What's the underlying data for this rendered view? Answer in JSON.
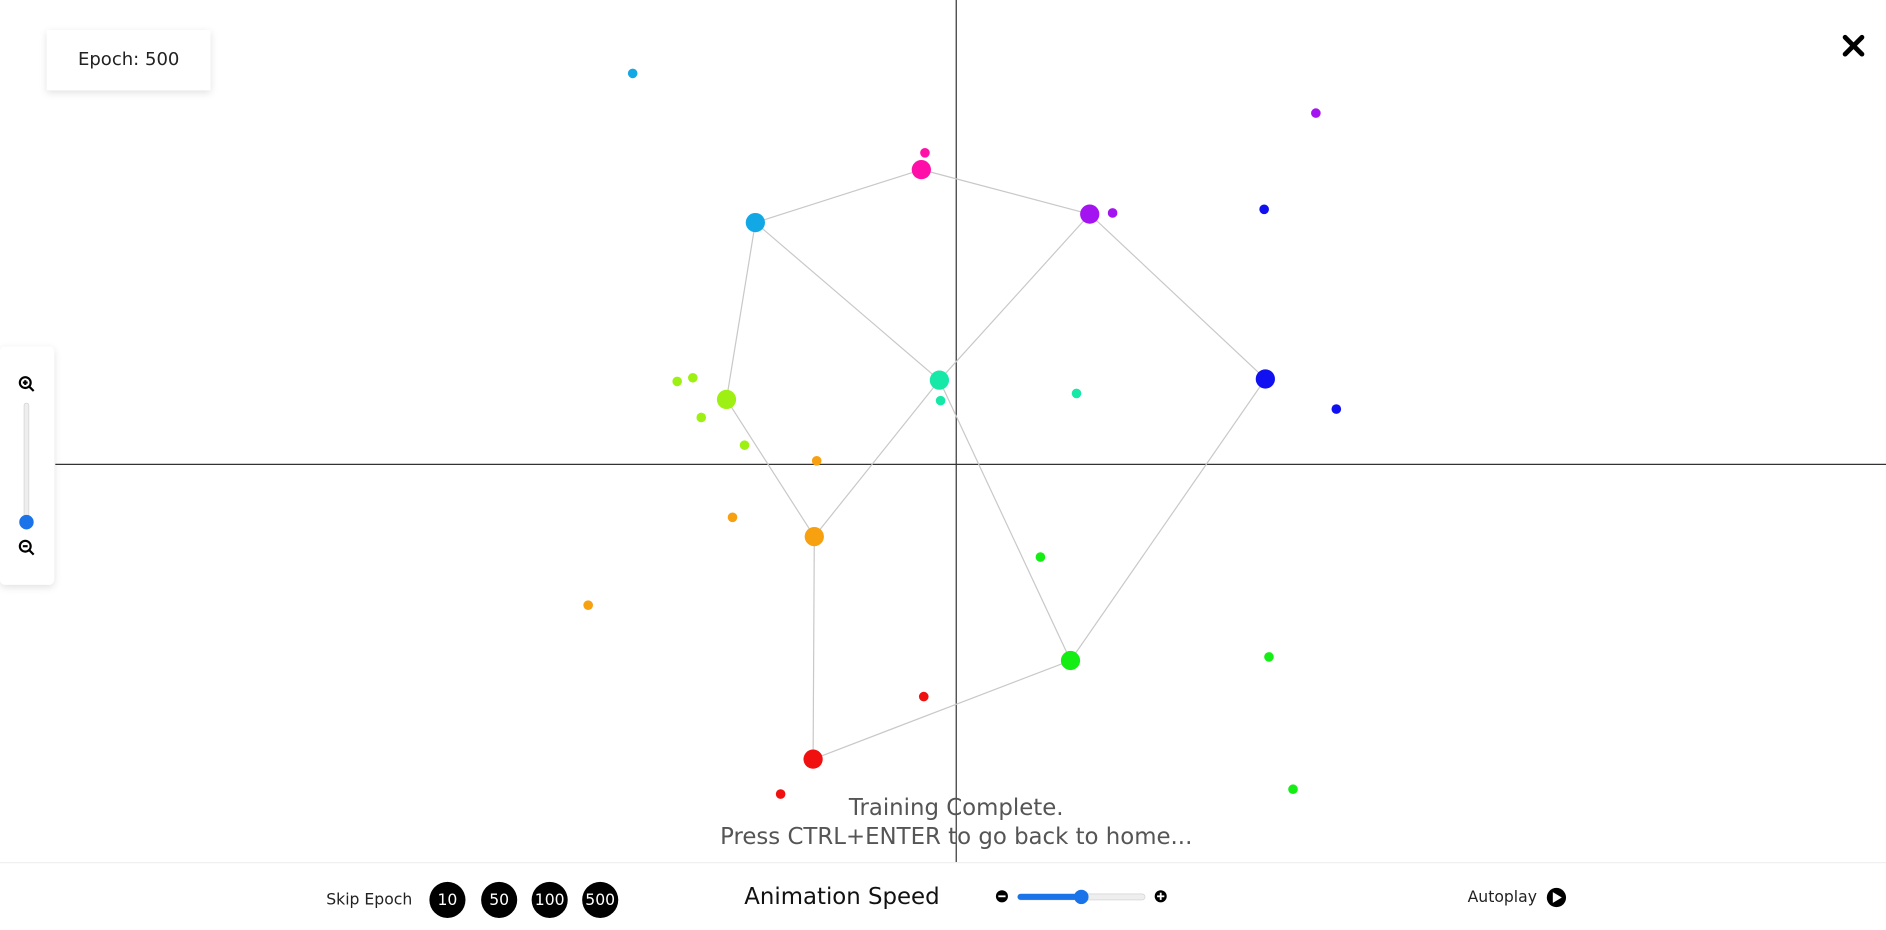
{
  "epoch_label": "Epoch: 500",
  "status": {
    "line1": "Training Complete.",
    "line2": "Press CTRL+ENTER to go back to home..."
  },
  "controls": {
    "skip_label": "Skip Epoch",
    "skip_buttons": [
      "10",
      "50",
      "100",
      "500"
    ],
    "speed_label": "Animation Speed",
    "autoplay_label": "Autoplay"
  }
}
